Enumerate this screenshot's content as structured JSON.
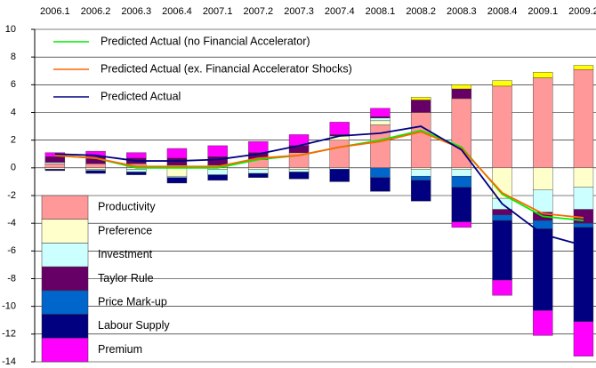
{
  "chart_data": {
    "type": "bar",
    "categories": [
      "2006.1",
      "2006.2",
      "2006.3",
      "2006.4",
      "2007.1",
      "2007.2",
      "2007.3",
      "2007.4",
      "2008.1",
      "2008.2",
      "2008.3",
      "2008.4",
      "2009.1",
      "2009.2"
    ],
    "ylim": [
      -14,
      10
    ],
    "yticks": [
      -14,
      -12,
      -10,
      -8,
      -6,
      -4,
      -2,
      0,
      2,
      4,
      6,
      8,
      10
    ],
    "grid": true,
    "stacked": true,
    "series": [
      {
        "name": "Productivity",
        "color": "#ff9999",
        "values": [
          0.3,
          0.3,
          0.3,
          0.2,
          0.2,
          0.6,
          1.1,
          2.0,
          3.1,
          4.0,
          5.0,
          5.9,
          6.5,
          7.1
        ]
      },
      {
        "name": "Preference",
        "color": "#ffffcc",
        "values": [
          -0.1,
          -0.1,
          -0.1,
          -0.6,
          -0.1,
          -0.1,
          -0.1,
          0.3,
          0.3,
          -0.1,
          -0.1,
          -2.2,
          -1.6,
          -1.4
        ]
      },
      {
        "name": "Investment",
        "color": "#ccffff",
        "values": [
          0.1,
          -0.1,
          -0.2,
          -0.1,
          -0.4,
          -0.3,
          -0.2,
          -0.1,
          0.2,
          -0.5,
          -0.5,
          -0.8,
          -1.6,
          -1.6
        ]
      },
      {
        "name": "Taylor Rule",
        "color": "#660066",
        "values": [
          0.4,
          0.5,
          0.4,
          0.5,
          0.6,
          0.5,
          0.5,
          0.1,
          0.1,
          0.9,
          0.7,
          -0.4,
          -0.6,
          -1.0
        ]
      },
      {
        "name": "Price Mark-up",
        "color": "#0066cc",
        "values": [
          0,
          0,
          0,
          0,
          0,
          0,
          0,
          0,
          -0.7,
          -0.3,
          -0.8,
          -0.4,
          -0.6,
          -0.3
        ]
      },
      {
        "name": "Labour Supply",
        "color": "#000080",
        "values": [
          -0.1,
          -0.2,
          -0.2,
          -0.4,
          -0.4,
          -0.3,
          -0.5,
          -0.9,
          -1.0,
          -1.5,
          -2.5,
          -4.3,
          -5.9,
          -6.8
        ]
      },
      {
        "name": "Premium",
        "color": "#ff00ff",
        "values": [
          0.3,
          0.4,
          0.4,
          0.7,
          0.8,
          0.8,
          0.8,
          0.9,
          0.6,
          0,
          -0.4,
          -1.1,
          -1.8,
          -2.5
        ]
      },
      {
        "color": "#ffff00",
        "values": [
          0,
          0,
          0,
          0,
          0,
          0,
          0,
          0,
          0,
          0.2,
          0.3,
          0.4,
          0.4,
          0.3
        ]
      }
    ],
    "lines": [
      {
        "name": "Predicted Actual (no Financial Accelerator)",
        "color": "#00ee00",
        "values": [
          0.9,
          0.7,
          0.0,
          0.0,
          0.0,
          0.6,
          0.9,
          1.5,
          2.0,
          2.7,
          1.5,
          -1.9,
          -3.5,
          -3.8
        ]
      },
      {
        "name": "Predicted Actual (ex. Financial Accelerator Shocks)",
        "color": "#ff6600",
        "values": [
          0.9,
          0.7,
          0.1,
          0.1,
          0.1,
          0.7,
          0.9,
          1.5,
          1.9,
          2.6,
          1.4,
          -1.8,
          -3.3,
          -3.6
        ]
      },
      {
        "name": "Predicted Actual",
        "color": "#000080",
        "values": [
          1.0,
          0.9,
          0.5,
          0.5,
          0.6,
          1.0,
          1.6,
          2.3,
          2.5,
          3.0,
          1.3,
          -2.6,
          -4.8,
          -5.6
        ]
      }
    ]
  }
}
